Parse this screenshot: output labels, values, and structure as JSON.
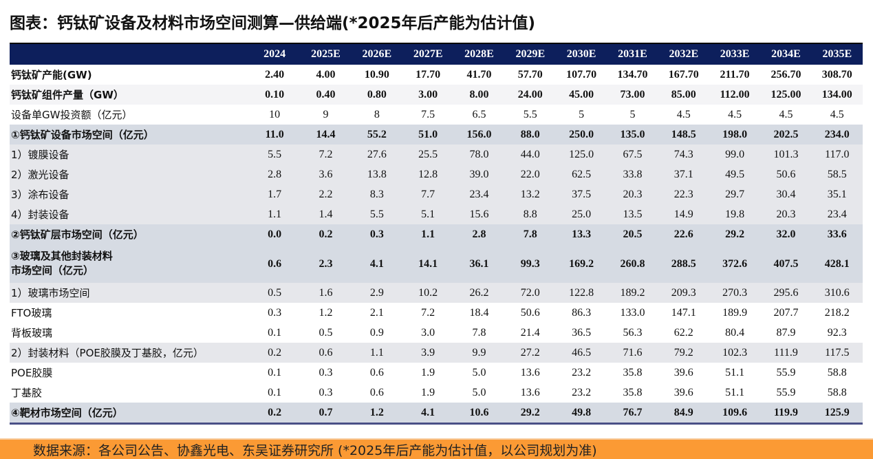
{
  "title": "图表：钙钛矿设备及材料市场空间测算—供给端(*2025年后产能为估计值)",
  "columns": [
    "2024",
    "2025E",
    "2026E",
    "2027E",
    "2028E",
    "2029E",
    "2030E",
    "2031E",
    "2032E",
    "2033E",
    "2034E",
    "2035E"
  ],
  "rows": [
    {
      "label": "钙钛矿产能(GW)",
      "values": [
        "2.40",
        "4.00",
        "10.90",
        "17.70",
        "41.70",
        "57.70",
        "107.70",
        "134.70",
        "167.70",
        "211.70",
        "256.70",
        "308.70"
      ]
    },
    {
      "label": "钙钛矿组件产量（GW）",
      "values": [
        "0.10",
        "0.40",
        "0.80",
        "3.00",
        "8.00",
        "24.00",
        "45.00",
        "73.00",
        "85.00",
        "112.00",
        "125.00",
        "134.00"
      ]
    },
    {
      "label": "设备单GW投资额（亿元）",
      "values": [
        "10",
        "9",
        "8",
        "7.5",
        "6.5",
        "5.5",
        "5",
        "5",
        "4.5",
        "4.5",
        "4.5",
        "4.5"
      ]
    },
    {
      "label": "①钙钛矿设备市场空间（亿元）",
      "values": [
        "11.0",
        "14.4",
        "55.2",
        "51.0",
        "156.0",
        "88.0",
        "250.0",
        "135.0",
        "148.5",
        "198.0",
        "202.5",
        "234.0"
      ]
    },
    {
      "label": "1）镀膜设备",
      "values": [
        "5.5",
        "7.2",
        "27.6",
        "25.5",
        "78.0",
        "44.0",
        "125.0",
        "67.5",
        "74.3",
        "99.0",
        "101.3",
        "117.0"
      ]
    },
    {
      "label": "2）激光设备",
      "values": [
        "2.8",
        "3.6",
        "13.8",
        "12.8",
        "39.0",
        "22.0",
        "62.5",
        "33.8",
        "37.1",
        "49.5",
        "50.6",
        "58.5"
      ]
    },
    {
      "label": "3）涂布设备",
      "values": [
        "1.7",
        "2.2",
        "8.3",
        "7.7",
        "23.4",
        "13.2",
        "37.5",
        "20.3",
        "22.3",
        "29.7",
        "30.4",
        "35.1"
      ]
    },
    {
      "label": "4）封装设备",
      "values": [
        "1.1",
        "1.4",
        "5.5",
        "5.1",
        "15.6",
        "8.8",
        "25.0",
        "13.5",
        "14.9",
        "19.8",
        "20.3",
        "23.4"
      ]
    },
    {
      "label": "②钙钛矿层市场空间（亿元）",
      "values": [
        "0.0",
        "0.2",
        "0.3",
        "1.1",
        "2.8",
        "7.8",
        "13.3",
        "20.5",
        "22.6",
        "29.2",
        "32.0",
        "33.6"
      ]
    },
    {
      "label": "③玻璃及其他封装材料",
      "label2": "市场空间（亿元）",
      "values": [
        "0.6",
        "2.3",
        "4.1",
        "14.1",
        "36.1",
        "99.3",
        "169.2",
        "260.8",
        "288.5",
        "372.6",
        "407.5",
        "428.1"
      ]
    },
    {
      "label": "1）玻璃市场空间",
      "values": [
        "0.5",
        "1.6",
        "2.9",
        "10.2",
        "26.2",
        "72.0",
        "122.8",
        "189.2",
        "209.3",
        "270.3",
        "295.6",
        "310.6"
      ]
    },
    {
      "label": " FTO玻璃",
      "values": [
        "0.3",
        "1.2",
        "2.1",
        "7.2",
        "18.4",
        "50.6",
        "86.3",
        "133.0",
        "147.1",
        "189.9",
        "207.7",
        "218.2"
      ]
    },
    {
      "label": " 背板玻璃",
      "values": [
        "0.1",
        "0.5",
        "0.9",
        "3.0",
        "7.8",
        "21.4",
        "36.5",
        "56.3",
        "62.2",
        "80.4",
        "87.9",
        "92.3"
      ]
    },
    {
      "label": "2）封装材料（POE胶膜及丁基胶，亿元）",
      "values": [
        "0.2",
        "0.6",
        "1.1",
        "3.9",
        "9.9",
        "27.2",
        "46.5",
        "71.6",
        "79.2",
        "102.3",
        "111.9",
        "117.5"
      ]
    },
    {
      "label": " POE胶膜",
      "values": [
        "0.1",
        "0.3",
        "0.6",
        "1.9",
        "5.0",
        "13.6",
        "23.2",
        "35.8",
        "39.6",
        "51.1",
        "55.9",
        "58.8"
      ]
    },
    {
      "label": " 丁基胶",
      "values": [
        "0.1",
        "0.3",
        "0.6",
        "1.9",
        "5.0",
        "13.6",
        "23.2",
        "35.8",
        "39.6",
        "51.1",
        "55.9",
        "58.8"
      ]
    },
    {
      "label": "④靶材市场空间（亿元）",
      "values": [
        "0.2",
        "0.7",
        "1.2",
        "4.1",
        "10.6",
        "29.2",
        "49.8",
        "76.7",
        "84.9",
        "109.6",
        "119.9",
        "125.9"
      ]
    }
  ],
  "footer": "数据来源：各公司公告、协鑫光电、东吴证券研究所 (*2025年后产能为估计值，以公司规划为准)",
  "colors": {
    "header_bg": "#0d1f5c",
    "footer_bg": "#fb9a34",
    "section_bg": "#d6dbe3"
  }
}
